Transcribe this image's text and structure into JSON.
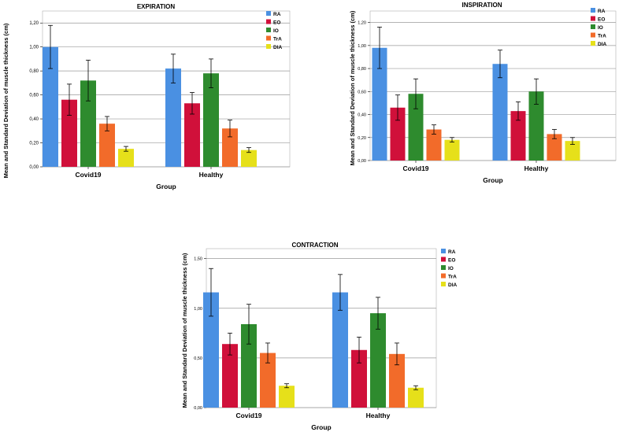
{
  "colors": {
    "RA": "#4a90e2",
    "EO": "#d0103a",
    "IO": "#2e8b2e",
    "TrA": "#f26b2a",
    "DIA": "#e6e01a",
    "grid": "#9a9a9a",
    "text": "#000000"
  },
  "chart_data": [
    {
      "type": "bar",
      "title": "EXPIRATION",
      "xlabel": "Group",
      "ylabel": "Mean and Standard Deviation of muscle thickness (cm)",
      "categories": [
        "Covid19",
        "Healthy"
      ],
      "ylim": [
        0,
        1.3
      ],
      "yticks": [
        0,
        0.2,
        0.4,
        0.6,
        0.8,
        1.0,
        1.2
      ],
      "ytick_labels": [
        "0,00",
        "0,20",
        "0,40",
        "0,60",
        "0,80",
        "1,00",
        "1,20"
      ],
      "legend_position": "top-right",
      "series": [
        {
          "name": "RA",
          "values": [
            1.0,
            0.82
          ],
          "errors": [
            0.18,
            0.12
          ]
        },
        {
          "name": "EO",
          "values": [
            0.56,
            0.53
          ],
          "errors": [
            0.13,
            0.09
          ]
        },
        {
          "name": "IO",
          "values": [
            0.72,
            0.78
          ],
          "errors": [
            0.17,
            0.12
          ]
        },
        {
          "name": "TrA",
          "values": [
            0.36,
            0.32
          ],
          "errors": [
            0.06,
            0.07
          ]
        },
        {
          "name": "DIA",
          "values": [
            0.15,
            0.14
          ],
          "errors": [
            0.02,
            0.02
          ]
        }
      ]
    },
    {
      "type": "bar",
      "title": "INSPIRATION",
      "xlabel": "Group",
      "ylabel": "Mean and Standard Deviation of muscle thickness (cm)",
      "categories": [
        "Covid19",
        "Healthy"
      ],
      "ylim": [
        0,
        1.3
      ],
      "yticks": [
        0,
        0.2,
        0.4,
        0.6,
        0.8,
        1.0,
        1.2
      ],
      "ytick_labels": [
        "0,00",
        "0,20",
        "0,40",
        "0,60",
        "0,80",
        "1,00",
        "1,20"
      ],
      "legend_position": "top-right",
      "series": [
        {
          "name": "RA",
          "values": [
            0.98,
            0.84
          ],
          "errors": [
            0.18,
            0.12
          ]
        },
        {
          "name": "EO",
          "values": [
            0.46,
            0.43
          ],
          "errors": [
            0.11,
            0.08
          ]
        },
        {
          "name": "IO",
          "values": [
            0.58,
            0.6
          ],
          "errors": [
            0.13,
            0.11
          ]
        },
        {
          "name": "TrA",
          "values": [
            0.27,
            0.23
          ],
          "errors": [
            0.04,
            0.04
          ]
        },
        {
          "name": "DIA",
          "values": [
            0.18,
            0.17
          ],
          "errors": [
            0.02,
            0.03
          ]
        }
      ]
    },
    {
      "type": "bar",
      "title": "CONTRACTION",
      "xlabel": "Group",
      "ylabel": "Mean and Standard Deviation of muscle thickness (cm)",
      "categories": [
        "Covid19",
        "Healthy"
      ],
      "ylim": [
        0,
        1.6
      ],
      "yticks": [
        0,
        0.5,
        1.0,
        1.5
      ],
      "ytick_labels": [
        "0,00",
        "0,50",
        "1,00",
        "1,50"
      ],
      "legend_position": "top-right",
      "series": [
        {
          "name": "RA",
          "values": [
            1.16,
            1.16
          ],
          "errors": [
            0.24,
            0.18
          ]
        },
        {
          "name": "EO",
          "values": [
            0.64,
            0.58
          ],
          "errors": [
            0.11,
            0.13
          ]
        },
        {
          "name": "IO",
          "values": [
            0.84,
            0.95
          ],
          "errors": [
            0.2,
            0.16
          ]
        },
        {
          "name": "TrA",
          "values": [
            0.55,
            0.54
          ],
          "errors": [
            0.1,
            0.11
          ]
        },
        {
          "name": "DIA",
          "values": [
            0.22,
            0.2
          ],
          "errors": [
            0.02,
            0.02
          ]
        }
      ]
    }
  ]
}
